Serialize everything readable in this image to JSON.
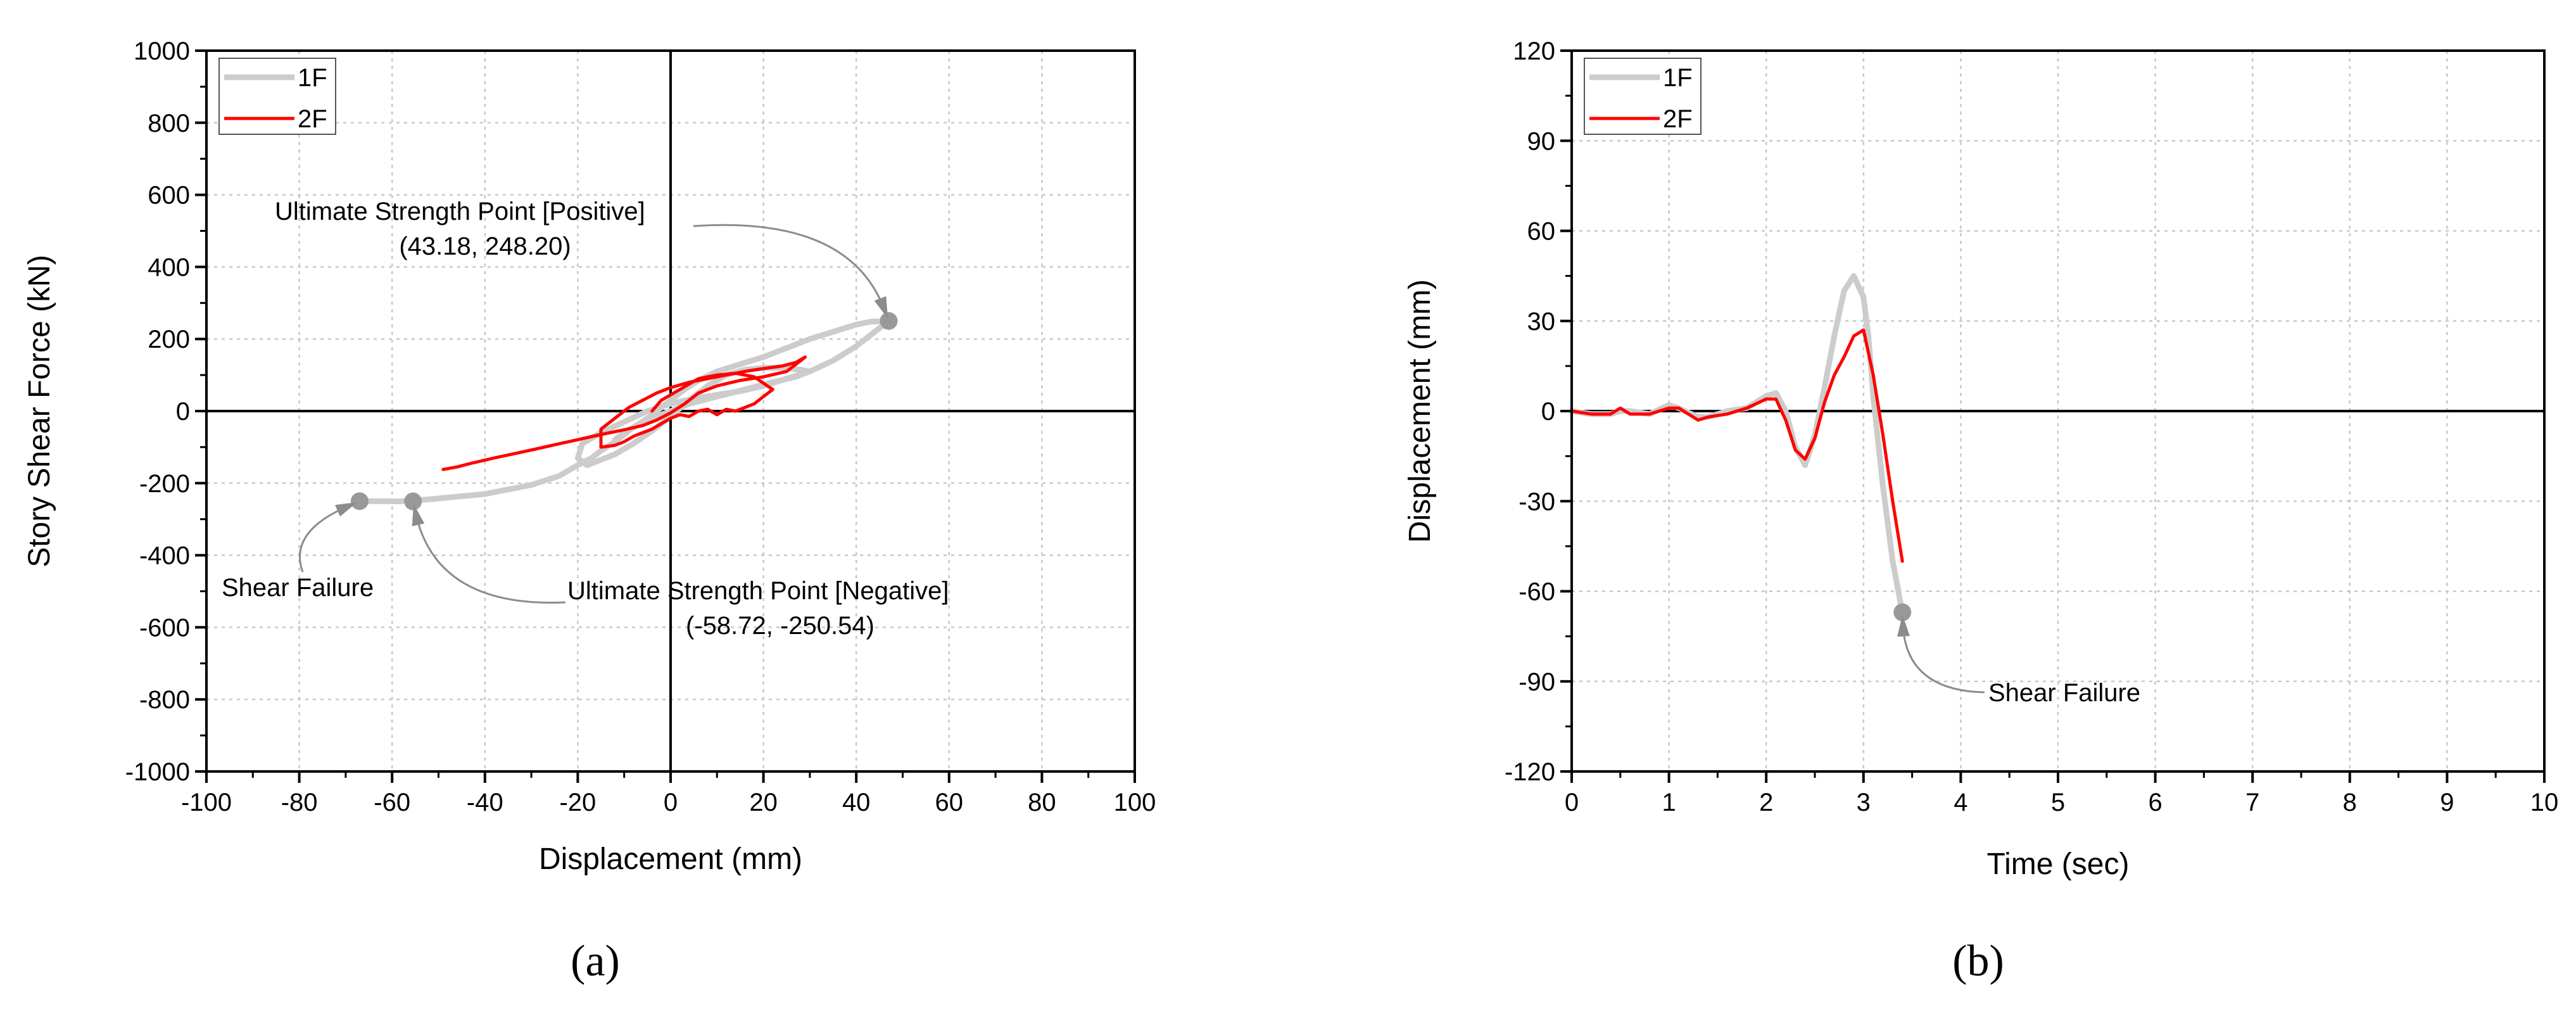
{
  "chart_data": [
    {
      "type": "line",
      "panel_label": "(a)",
      "xlabel": "Displacement (mm)",
      "ylabel": "Story Shear Force (kN)",
      "xlim": [
        -100,
        100
      ],
      "ylim": [
        -1000,
        1000
      ],
      "xticks": [
        -100,
        -80,
        -60,
        -40,
        -20,
        0,
        20,
        40,
        60,
        80,
        100
      ],
      "yticks": [
        -1000,
        -800,
        -600,
        -400,
        -200,
        0,
        200,
        400,
        600,
        800,
        1000
      ],
      "grid": true,
      "legend_position": "top-left",
      "series": [
        {
          "name": "1F",
          "color": "#cccccc",
          "x": [
            -67,
            -62,
            -58.72,
            -52,
            -40,
            -30,
            -24,
            -20,
            -17,
            -15,
            -12,
            -10,
            -8,
            -5,
            -3,
            0,
            3,
            6,
            10,
            15,
            20,
            25,
            30,
            35,
            40,
            43.18,
            47,
            44,
            40,
            35,
            30,
            25,
            20,
            15,
            10,
            5,
            0,
            -5,
            -10,
            -15,
            -19,
            -20,
            -18,
            -12,
            -8,
            -4,
            0,
            4,
            8,
            12,
            16,
            20,
            24,
            28,
            30,
            27,
            22,
            16,
            10,
            4,
            -2,
            -6,
            -10,
            -12
          ],
          "y": [
            -250,
            -250,
            -250.54,
            -245,
            -230,
            -205,
            -180,
            -150,
            -130,
            -110,
            -85,
            -65,
            -45,
            -20,
            0,
            30,
            60,
            85,
            110,
            130,
            150,
            175,
            200,
            220,
            240,
            248.2,
            250,
            220,
            180,
            140,
            110,
            90,
            70,
            55,
            45,
            35,
            20,
            0,
            -30,
            -60,
            -90,
            -130,
            -150,
            -120,
            -90,
            -55,
            -15,
            30,
            70,
            100,
            115,
            120,
            120,
            115,
            110,
            95,
            80,
            60,
            40,
            20,
            -10,
            -30,
            -60,
            -80
          ]
        },
        {
          "name": "2F",
          "color": "#ff0000",
          "x": [
            -49,
            -46,
            -43,
            -38,
            -30,
            -22,
            -15,
            -10,
            -6,
            -3,
            0,
            3,
            6,
            10,
            15,
            20,
            25,
            29,
            27,
            24,
            20,
            16,
            12,
            8,
            4,
            0,
            -3,
            -6,
            -9,
            -12,
            -15,
            -15,
            -12,
            -10,
            -8,
            -6,
            -4,
            -2,
            0,
            2,
            4,
            6,
            8,
            10,
            12,
            14,
            16,
            18,
            20,
            22,
            18,
            14,
            10,
            6,
            2,
            -2,
            -4
          ],
          "y": [
            -162,
            -155,
            -145,
            -130,
            -108,
            -85,
            -65,
            -52,
            -40,
            -25,
            -5,
            20,
            50,
            70,
            85,
            95,
            110,
            150,
            135,
            125,
            118,
            110,
            100,
            90,
            80,
            65,
            50,
            30,
            10,
            -20,
            -50,
            -100,
            -95,
            -85,
            -70,
            -60,
            -50,
            -35,
            -20,
            -10,
            -15,
            0,
            5,
            -10,
            5,
            0,
            10,
            20,
            40,
            60,
            95,
            105,
            100,
            90,
            60,
            30,
            0
          ]
        }
      ],
      "annotations": [
        {
          "line1": "Ultimate Strength Point [Positive]",
          "line2": "(43.18, 248.20)",
          "point_x": 47,
          "point_y": 250
        },
        {
          "line1": "Ultimate Strength Point [Negative]",
          "line2": "(-58.72, -250.54)",
          "point_x": -55.5,
          "point_y": -250.54
        },
        {
          "line1": "Shear Failure",
          "point_x": -67,
          "point_y": -250
        }
      ]
    },
    {
      "type": "line",
      "panel_label": "(b)",
      "xlabel": "Time (sec)",
      "ylabel": "Displacement (mm)",
      "xlim": [
        0,
        10
      ],
      "ylim": [
        -120,
        120
      ],
      "xticks": [
        0,
        1,
        2,
        3,
        4,
        5,
        6,
        7,
        8,
        9,
        10
      ],
      "yticks": [
        -120,
        -90,
        -60,
        -30,
        0,
        30,
        60,
        90,
        120
      ],
      "grid": true,
      "legend_position": "top-left",
      "series": [
        {
          "name": "1F",
          "color": "#cccccc",
          "x": [
            0,
            0.2,
            0.4,
            0.5,
            0.6,
            0.8,
            1.0,
            1.1,
            1.3,
            1.4,
            1.6,
            1.8,
            2.0,
            2.1,
            2.2,
            2.3,
            2.4,
            2.5,
            2.6,
            2.7,
            2.8,
            2.9,
            3.0,
            3.05,
            3.1,
            3.2,
            3.3,
            3.4
          ],
          "y": [
            0,
            -1,
            -1,
            0,
            0,
            -1,
            2,
            1,
            -2,
            -2,
            0,
            1,
            5,
            6,
            0,
            -12,
            -18,
            -8,
            8,
            25,
            40,
            45,
            38,
            25,
            5,
            -25,
            -50,
            -67
          ]
        },
        {
          "name": "2F",
          "color": "#ff0000",
          "x": [
            0,
            0.2,
            0.4,
            0.5,
            0.6,
            0.8,
            1.0,
            1.1,
            1.2,
            1.3,
            1.4,
            1.6,
            1.8,
            2.0,
            2.1,
            2.2,
            2.3,
            2.4,
            2.5,
            2.6,
            2.7,
            2.8,
            2.9,
            3.0,
            3.1,
            3.2,
            3.3,
            3.4
          ],
          "y": [
            0,
            -1,
            -1,
            1,
            -1,
            -1,
            1,
            1,
            -1,
            -3,
            -2,
            -1,
            1,
            4,
            4,
            -3,
            -13,
            -16,
            -9,
            3,
            12,
            18,
            25,
            27,
            12,
            -8,
            -30,
            -50
          ]
        }
      ],
      "annotations": [
        {
          "line1": "Shear Failure",
          "point_x": 3.4,
          "point_y": -67
        }
      ]
    }
  ]
}
